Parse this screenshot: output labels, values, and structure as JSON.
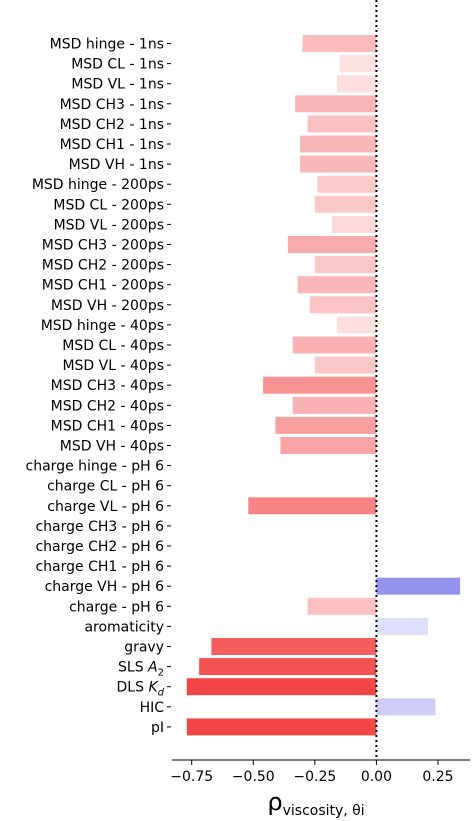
{
  "chart_data": {
    "type": "bar",
    "orientation": "horizontal",
    "categories": [
      "MSD hinge - 1ns",
      "MSD CL - 1ns",
      "MSD VL - 1ns",
      "MSD CH3 - 1ns",
      "MSD CH2 - 1ns",
      "MSD CH1 - 1ns",
      "MSD VH - 1ns",
      "MSD hinge - 200ps",
      "MSD CL - 200ps",
      "MSD VL - 200ps",
      "MSD CH3 - 200ps",
      "MSD CH2 - 200ps",
      "MSD CH1 - 200ps",
      "MSD VH - 200ps",
      "MSD hinge - 40ps",
      "MSD CL - 40ps",
      "MSD VL - 40ps",
      "MSD CH3 - 40ps",
      "MSD CH2 - 40ps",
      "MSD CH1 - 40ps",
      "MSD VH - 40ps",
      "charge hinge - pH 6",
      "charge CL - pH 6",
      "charge VL - pH 6",
      "charge CH3 - pH 6",
      "charge CH2 - pH 6",
      "charge CH1 - pH 6",
      "charge VH - pH 6",
      "charge - pH 6",
      "aromaticity",
      "gravy",
      "SLS A2",
      "DLS Kd",
      "HIC",
      "pI"
    ],
    "values": [
      -0.3,
      -0.15,
      -0.16,
      -0.33,
      -0.28,
      -0.31,
      -0.31,
      -0.24,
      -0.25,
      -0.18,
      -0.36,
      -0.25,
      -0.32,
      -0.27,
      -0.16,
      -0.34,
      -0.25,
      -0.46,
      -0.34,
      -0.41,
      -0.39,
      0.0,
      0.0,
      -0.52,
      0.0,
      0.0,
      0.0,
      0.34,
      -0.28,
      0.21,
      -0.67,
      -0.72,
      -0.77,
      0.24,
      -0.77
    ],
    "xlabel": "ρviscosity, θi",
    "xlim": [
      -0.83,
      0.38
    ],
    "xticks": [
      -0.75,
      -0.5,
      -0.25,
      0.0,
      0.25
    ],
    "xtick_labels": [
      "−0.75",
      "−0.50",
      "−0.25",
      "0.00",
      "0.25"
    ],
    "reference_line": {
      "x": 0,
      "style": "dotted",
      "color": "#000000"
    },
    "grid": false,
    "colors": {
      "strong_negative": "#f24545",
      "weak_negative": "#fde1e1",
      "strong_positive": "#9494ee",
      "weak_positive": "#dedefb"
    }
  }
}
